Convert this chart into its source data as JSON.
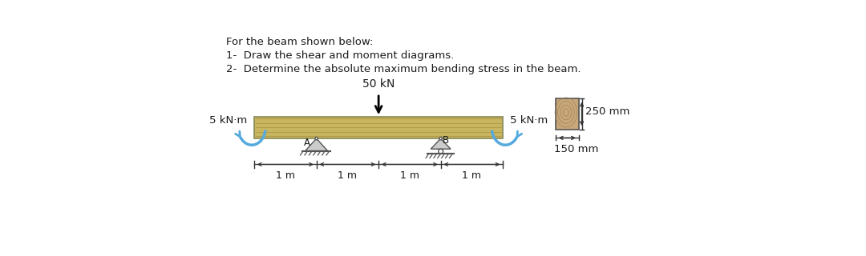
{
  "title_line1": "For the beam shown below:",
  "title_line2": "1-  Draw the shear and moment diagrams.",
  "title_line3": "2-  Determine the absolute maximum bending stress in the beam.",
  "load_label": "50 kN",
  "moment_left_label": "5 kN·m",
  "moment_right_label": "5 kN·m",
  "support_A_label": "A",
  "support_B_label": "B",
  "dim_labels": [
    "1 m",
    "1 m",
    "1 m",
    "1 m"
  ],
  "cs_height_label": "250 mm",
  "cs_width_label": "150 mm",
  "text_color": "#1a1a1a",
  "beam_fill": "#c8b560",
  "beam_edge": "#888855",
  "grain_color": "#a89040",
  "moment_arc_color": "#55aadd",
  "support_fill": "#cccccc",
  "support_edge": "#555555",
  "cs_fill": "#c8a878",
  "cs_edge": "#555555",
  "dim_arrow_color": "#333333"
}
